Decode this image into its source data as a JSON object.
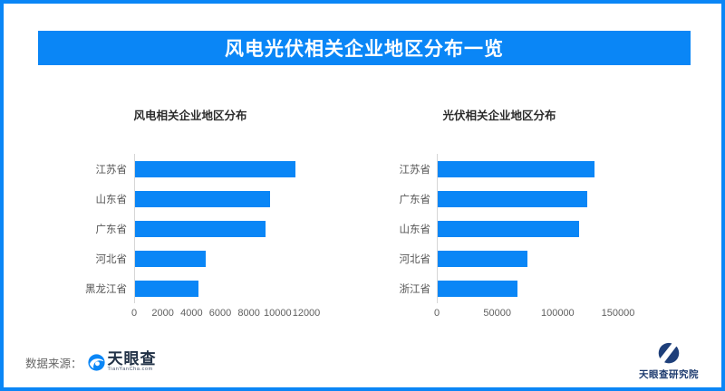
{
  "accent": "#0a86f6",
  "banner": {
    "title": "风电光伏相关企业地区分布一览"
  },
  "chart_data": [
    {
      "type": "bar",
      "orientation": "horizontal",
      "title": "风电相关企业地区分布",
      "categories": [
        "江苏省",
        "山东省",
        "广东省",
        "河北省",
        "黑龙江省"
      ],
      "values": [
        11200,
        9400,
        9100,
        4900,
        4400
      ],
      "x_ticks": [
        0,
        2000,
        4000,
        6000,
        8000,
        10000,
        12000
      ],
      "xlim": [
        0,
        12000
      ],
      "bar_color": "#0a86f6",
      "grid": false,
      "legend": false
    },
    {
      "type": "bar",
      "orientation": "horizontal",
      "title": "光伏相关企业地区分布",
      "categories": [
        "江苏省",
        "广东省",
        "山东省",
        "河北省",
        "浙江省"
      ],
      "values": [
        130000,
        124000,
        117000,
        74000,
        66000
      ],
      "x_ticks": [
        0,
        50000,
        100000,
        150000
      ],
      "xlim": [
        0,
        150000
      ],
      "bar_color": "#0a86f6",
      "grid": false,
      "legend": false
    }
  ],
  "footer": {
    "source_label": "数据来源：",
    "logo_text": "天眼查",
    "logo_subtext": "TianYanCha.com",
    "institute_label": "天眼查研究院"
  }
}
